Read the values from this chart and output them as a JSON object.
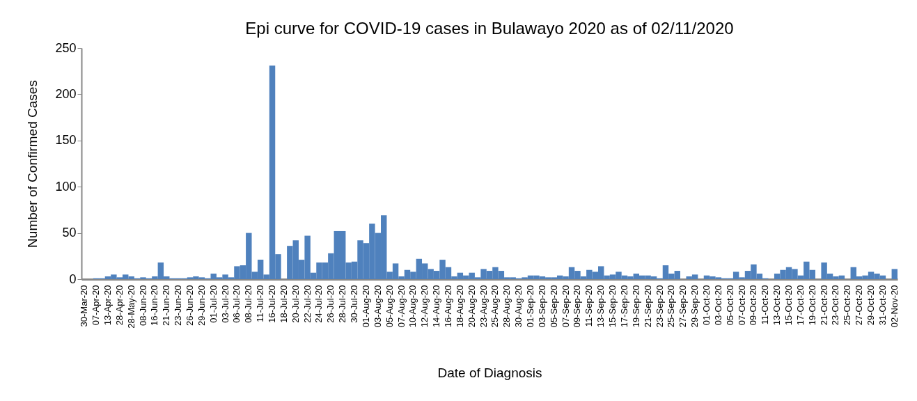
{
  "chart_data": {
    "type": "bar",
    "title": "Epi curve for COVID-19 cases in Bulawayo 2020 as of  02/11/2020",
    "xlabel": "Date of Diagnosis",
    "ylabel": "Number of  Confirmed Cases",
    "categories": [
      "30-Mar-20",
      null,
      "07-Apr-20",
      null,
      "13-Apr-20",
      null,
      "28-Apr-20",
      null,
      "28-May-20",
      null,
      "08-Jun-20",
      null,
      "16-Jun-20",
      null,
      "21-Jun-20",
      null,
      "23-Jun-20",
      null,
      "26-Jun-20",
      null,
      "29-Jun-20",
      null,
      "01-Jul-20",
      null,
      "03-Jul-20",
      null,
      "06-Jul-20",
      null,
      "08-Jul-20",
      null,
      "11-Jul-20",
      null,
      "16-Jul-20",
      null,
      "18-Jul-20",
      null,
      "20-Jul-20",
      null,
      "22-Jul-20",
      null,
      "24-Jul-20",
      null,
      "26-Jul-20",
      null,
      "28-Jul-20",
      null,
      "30-Jul-20",
      null,
      "01-Aug-20",
      null,
      "03-Aug-20",
      null,
      "05-Aug-20",
      null,
      "07-Aug-20",
      null,
      "10-Aug-20",
      null,
      "12-Aug-20",
      null,
      "14-Aug-20",
      null,
      "16-Aug-20",
      null,
      "18-Aug-20",
      null,
      "20-Aug-20",
      null,
      "23-Aug-20",
      null,
      "25-Aug-20",
      null,
      "28-Aug-20",
      null,
      "30-Aug-20",
      null,
      "01-Sep-20",
      null,
      "03-Sep-20",
      null,
      "05-Sep-20",
      null,
      "07-Sep-20",
      null,
      "09-Sep-20",
      null,
      "11-Sep-20",
      null,
      "13-Sep-20",
      null,
      "15-Sep-20",
      null,
      "17-Sep-20",
      null,
      "19-Sep-20",
      null,
      "21-Sep-20",
      null,
      "23-Sep-20",
      null,
      "25-Sep-20",
      null,
      "27-Sep-20",
      null,
      "29-Sep-20",
      null,
      "01-Oct-20",
      null,
      "03-Oct-20",
      null,
      "05-Oct-20",
      null,
      "07-Oct-20",
      null,
      "09-Oct-20",
      null,
      "11-Oct-20",
      null,
      "13-Oct-20",
      null,
      "15-Oct-20",
      null,
      "17-Oct-20",
      null,
      "19-Oct-20",
      null,
      "21-Oct-20",
      null,
      "23-Oct-20",
      null,
      "25-Oct-20",
      null,
      "27-Oct-20",
      null,
      "29-Oct-20",
      null,
      "31-Oct-20",
      null,
      "02-Nov-20"
    ],
    "values": [
      0,
      0,
      1,
      1,
      3,
      5,
      2,
      5,
      3,
      1,
      2,
      1,
      3,
      18,
      3,
      1,
      1,
      1,
      2,
      3,
      2,
      1,
      6,
      2,
      5,
      2,
      14,
      15,
      50,
      8,
      21,
      5,
      231,
      27,
      0,
      36,
      42,
      21,
      47,
      7,
      18,
      18,
      28,
      52,
      52,
      18,
      19,
      42,
      39,
      60,
      50,
      69,
      8,
      17,
      3,
      10,
      8,
      22,
      17,
      11,
      9,
      21,
      13,
      3,
      7,
      4,
      7,
      2,
      11,
      9,
      13,
      9,
      2,
      2,
      1,
      2,
      4,
      4,
      3,
      2,
      2,
      4,
      3,
      13,
      9,
      3,
      10,
      8,
      14,
      4,
      5,
      8,
      4,
      3,
      6,
      4,
      4,
      3,
      1,
      15,
      6,
      9,
      0,
      3,
      5,
      0,
      4,
      3,
      2,
      1,
      1,
      8,
      2,
      9,
      16,
      6,
      1,
      0,
      6,
      10,
      13,
      11,
      4,
      19,
      10,
      0,
      18,
      6,
      3,
      4,
      0,
      13,
      3,
      4,
      8,
      6,
      4,
      0,
      11
    ],
    "color": "#4f81bd",
    "ylim": [
      0,
      250
    ],
    "yticks": [
      0,
      50,
      100,
      150,
      200,
      250
    ],
    "grid": false
  }
}
